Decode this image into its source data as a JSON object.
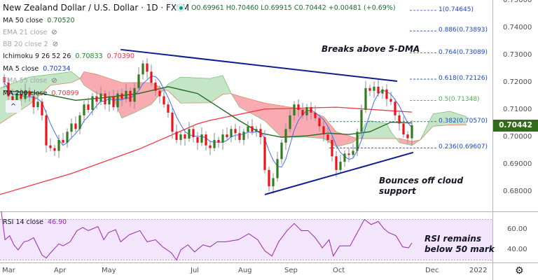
{
  "header": {
    "title": "New Zealand Dollar / U.S. Dollar · 1D · FXCM",
    "ohlc": "O0.69961 H0.70460 L0.69915 C0.70442 +0.00481 (+0.69%)",
    "market_status_icon": "market-open-dot"
  },
  "legend": [
    {
      "label": "MA 50 close",
      "value": "0.70520",
      "color": "#1b6f2a",
      "hidden": false
    },
    {
      "label": "EMA 21 close",
      "value": "",
      "hidden": true
    },
    {
      "label": "BB 20 close 2",
      "value": "",
      "hidden": true
    },
    {
      "label": "Ichimoku 9 26 52 26",
      "value": "0.70833",
      "value2": "0.70390",
      "color": "#1b8a2a",
      "color2": "#f23645",
      "hidden": false
    },
    {
      "label": "MA 5 close",
      "value": "0.70234",
      "color": "#1848cc",
      "hidden": false
    },
    {
      "label": "EMA 55 close",
      "value": "",
      "hidden": true
    },
    {
      "label": "MA 200 close",
      "value": "0.70899",
      "color": "#f23645",
      "hidden": false
    }
  ],
  "collapse_label": "^",
  "price_axis": [
    "0.75000",
    "0.74000",
    "0.73000",
    "0.72000",
    "0.71000",
    "0.70000",
    "0.69000",
    "0.68000"
  ],
  "current_price": "0.70442",
  "rsi_axis": [
    "60.00",
    "40.00"
  ],
  "time_axis": [
    "Mar",
    "Apr",
    "May",
    "Jul",
    "Aug",
    "Sep",
    "Oct",
    "Dec",
    "2022"
  ],
  "annotations": {
    "top": "Breaks above 5-DMA",
    "bottom_line1": "Bounces off cloud",
    "bottom_line2": "support",
    "rsi_line1": "RSI remains",
    "rsi_line2": "below 50 mark"
  },
  "rsi_legend": {
    "label": "RSI 14 close",
    "value": "46.90"
  },
  "colors": {
    "up": "#2f7d1f",
    "down": "#e8141b",
    "ma5": "#2962ff",
    "ma50": "#1e6b1e",
    "ma200": "#f23645",
    "trend": "#0d1f8c",
    "fib": "#1848cc",
    "fib_mid": "#4caf50",
    "rsi": "#9c27b0"
  },
  "chart_data": {
    "type": "candlestick",
    "title": "New Zealand Dollar / U.S. Dollar · 1D · FXCM",
    "ylim": [
      0.675,
      0.75
    ],
    "closes": [
      0.72,
      0.715,
      0.712,
      0.716,
      0.714,
      0.717,
      0.715,
      0.711,
      0.713,
      0.708,
      0.697,
      0.696,
      0.695,
      0.699,
      0.698,
      0.702,
      0.705,
      0.703,
      0.708,
      0.712,
      0.71,
      0.715,
      0.713,
      0.716,
      0.712,
      0.715,
      0.711,
      0.716,
      0.714,
      0.717,
      0.713,
      0.718,
      0.723,
      0.727,
      0.724,
      0.72,
      0.717,
      0.715,
      0.712,
      0.709,
      0.702,
      0.699,
      0.701,
      0.6995,
      0.703,
      0.7,
      0.698,
      0.701,
      0.697,
      0.696,
      0.699,
      0.698,
      0.701,
      0.7,
      0.703,
      0.7015,
      0.699,
      0.702,
      0.704,
      0.702,
      0.703,
      0.7,
      0.688,
      0.682,
      0.685,
      0.692,
      0.698,
      0.703,
      0.708,
      0.712,
      0.71,
      0.708,
      0.711,
      0.709,
      0.707,
      0.704,
      0.701,
      0.699,
      0.693,
      0.688,
      0.691,
      0.694,
      0.6935,
      0.695,
      0.702,
      0.71,
      0.718,
      0.717,
      0.7185,
      0.716,
      0.7175,
      0.714,
      0.713,
      0.708,
      0.705,
      0.701,
      0.6996,
      0.7044
    ],
    "ma50": [
      [
        0,
        0.717
      ],
      [
        9,
        0.716
      ],
      [
        17,
        0.7135
      ],
      [
        24,
        0.7145
      ],
      [
        32,
        0.716
      ],
      [
        39,
        0.7185
      ],
      [
        46,
        0.716
      ],
      [
        51,
        0.711
      ],
      [
        56,
        0.706
      ],
      [
        61,
        0.7015
      ],
      [
        66,
        0.7
      ],
      [
        72,
        0.7005
      ],
      [
        77,
        0.7015
      ],
      [
        82,
        0.701
      ],
      [
        87,
        0.702
      ],
      [
        92,
        0.7055
      ],
      [
        97,
        0.7052
      ]
    ],
    "ma200": [
      [
        -1,
        0.679
      ],
      [
        16,
        0.6867
      ],
      [
        32,
        0.6956
      ],
      [
        46,
        0.7049
      ],
      [
        49,
        0.7062
      ],
      [
        62,
        0.7103
      ],
      [
        79,
        0.711
      ],
      [
        97,
        0.7092
      ]
    ],
    "ichimoku_cloud": [
      [
        -1,
        0.718,
        0.705
      ],
      [
        6,
        0.722,
        0.712
      ],
      [
        11,
        0.723,
        0.719
      ],
      [
        16,
        0.724,
        0.72
      ],
      [
        18,
        0.7215,
        0.7215
      ],
      [
        19,
        0.719,
        0.724
      ],
      [
        22,
        0.716,
        0.723
      ],
      [
        26,
        0.714,
        0.721
      ],
      [
        28,
        0.707,
        0.72
      ],
      [
        31,
        0.709,
        0.72
      ],
      [
        35,
        0.712,
        0.72
      ],
      [
        38,
        0.7175,
        0.7175
      ],
      [
        39,
        0.7195,
        0.717
      ],
      [
        42,
        0.722,
        0.7125
      ],
      [
        49,
        0.7215,
        0.7126
      ],
      [
        52,
        0.7226,
        0.7157
      ],
      [
        54,
        0.716,
        0.716
      ],
      [
        56,
        0.711,
        0.715
      ],
      [
        62,
        0.706,
        0.7125
      ],
      [
        66,
        0.7,
        0.7115
      ],
      [
        72,
        0.7,
        0.71
      ],
      [
        76,
        0.6995,
        0.7075
      ],
      [
        79,
        0.6965,
        0.702
      ],
      [
        83,
        0.698,
        0.7
      ],
      [
        84,
        0.6995,
        0.6995
      ],
      [
        86,
        0.705,
        0.6995
      ],
      [
        87,
        0.706,
        0.6995
      ],
      [
        91,
        0.705,
        0.6995
      ],
      [
        92,
        0.702,
        0.6995
      ],
      [
        94,
        0.698,
        0.6995
      ],
      [
        97,
        0.697,
        0.6985
      ],
      [
        99,
        0.699,
        0.699
      ],
      [
        102,
        0.7085,
        0.704
      ],
      [
        106,
        0.7095,
        0.7045
      ],
      [
        110,
        0.7075,
        0.7045
      ]
    ],
    "trendlines": [
      {
        "name": "upper",
        "points": [
          [
            27.7,
            0.7321
          ],
          [
            93.5,
            0.7205
          ]
        ]
      },
      {
        "name": "lower",
        "points": [
          [
            62,
            0.679
          ],
          [
            97.3,
            0.6944
          ]
        ]
      }
    ],
    "fib_levels": [
      {
        "label": "1(0.74645)",
        "price": 0.74645,
        "mid": false
      },
      {
        "label": "0.886(0.73893)",
        "price": 0.73893,
        "mid": false
      },
      {
        "label": "0.764(0.73089)",
        "price": 0.73089,
        "mid": false
      },
      {
        "label": "0.618(0.72126)",
        "price": 0.72126,
        "mid": false
      },
      {
        "label": "0.5(0.71348)",
        "price": 0.71348,
        "mid": true
      },
      {
        "label": "0.382(0.70570)",
        "price": 0.7057,
        "mid": false
      },
      {
        "label": "0.236(0.69607)",
        "price": 0.69607,
        "mid": false
      }
    ],
    "rsi": [
      [
        -0.7,
        78
      ],
      [
        0.2,
        50
      ],
      [
        1.3,
        54
      ],
      [
        2.3,
        45
      ],
      [
        3.3,
        40
      ],
      [
        4.7,
        48
      ],
      [
        5.7,
        49
      ],
      [
        7,
        52
      ],
      [
        9,
        35
      ],
      [
        10,
        32
      ],
      [
        11,
        37
      ],
      [
        13,
        46
      ],
      [
        14,
        44
      ],
      [
        15.7,
        48
      ],
      [
        17.3,
        59
      ],
      [
        18.7,
        62
      ],
      [
        20,
        59
      ],
      [
        22.3,
        63
      ],
      [
        23.7,
        50
      ],
      [
        24.8,
        57
      ],
      [
        26.5,
        60
      ],
      [
        27.7,
        48
      ],
      [
        29.8,
        55
      ],
      [
        32.3,
        59
      ],
      [
        34,
        48
      ],
      [
        36,
        50
      ],
      [
        37.7,
        43
      ],
      [
        39.8,
        37
      ],
      [
        41,
        30
      ],
      [
        42,
        40
      ],
      [
        43.7,
        45
      ],
      [
        45.3,
        38
      ],
      [
        47.3,
        45
      ],
      [
        49,
        43
      ],
      [
        50.7,
        48
      ],
      [
        52.7,
        48
      ],
      [
        55.7,
        50
      ],
      [
        58.2,
        56
      ],
      [
        60.3,
        50
      ],
      [
        62,
        39
      ],
      [
        63.7,
        34
      ],
      [
        65.3,
        48
      ],
      [
        67.3,
        59
      ],
      [
        69,
        66
      ],
      [
        70.7,
        59
      ],
      [
        72.3,
        59
      ],
      [
        74,
        52
      ],
      [
        75.7,
        42
      ],
      [
        77.3,
        50
      ],
      [
        78.3,
        34
      ],
      [
        79.8,
        44
      ],
      [
        82.3,
        44
      ],
      [
        84,
        57
      ],
      [
        85.7,
        70
      ],
      [
        87.3,
        65
      ],
      [
        89,
        68
      ],
      [
        90.3,
        61
      ],
      [
        91.5,
        57
      ],
      [
        93.2,
        54
      ],
      [
        94.8,
        43
      ],
      [
        96.2,
        42
      ],
      [
        97,
        46.9
      ]
    ],
    "rsi_bands": [
      30,
      70
    ],
    "rsi_ylim": [
      20,
      80
    ]
  }
}
